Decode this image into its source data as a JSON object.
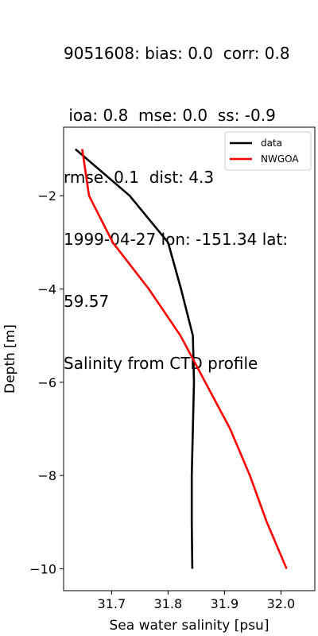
{
  "chart_data": {
    "type": "line",
    "title_lines": [
      "9051608: bias: 0.0  corr: 0.8",
      " ioa: 0.8  mse: 0.0  ss: -0.9",
      "rmse: 0.1  dist: 4.3",
      "1999-04-27 lon: -151.34 lat:",
      "59.57",
      "Salinity from CTD profile"
    ],
    "xlabel": "Sea water salinity [psu]",
    "ylabel": "Depth [m]",
    "xlim": [
      31.615,
      32.06
    ],
    "ylim": [
      -10.47,
      -0.53
    ],
    "xticks": [
      31.7,
      31.8,
      31.9,
      32.0
    ],
    "xtick_labels": [
      "31.7",
      "31.8",
      "31.9",
      "32.0"
    ],
    "yticks": [
      -2,
      -4,
      -6,
      -8,
      -10
    ],
    "ytick_labels": [
      "−2",
      "−4",
      "−6",
      "−8",
      "−10"
    ],
    "grid": false,
    "legend_position": "top-right",
    "series": [
      {
        "name": "data",
        "color": "#000000",
        "x": [
          31.636,
          31.732,
          31.8,
          31.823,
          31.844,
          31.846,
          31.844,
          31.842,
          31.842,
          31.843
        ],
        "y": [
          -1,
          -2,
          -3,
          -4,
          -5,
          -6,
          -7,
          -8,
          -9,
          -10
        ]
      },
      {
        "name": "NWGOA",
        "color": "#ff0000",
        "x": [
          31.648,
          31.66,
          31.702,
          31.766,
          31.822,
          31.866,
          31.91,
          31.945,
          31.975,
          32.01
        ],
        "y": [
          -1,
          -2,
          -3,
          -4,
          -5,
          -6,
          -7,
          -8,
          -9,
          -10
        ]
      }
    ]
  }
}
